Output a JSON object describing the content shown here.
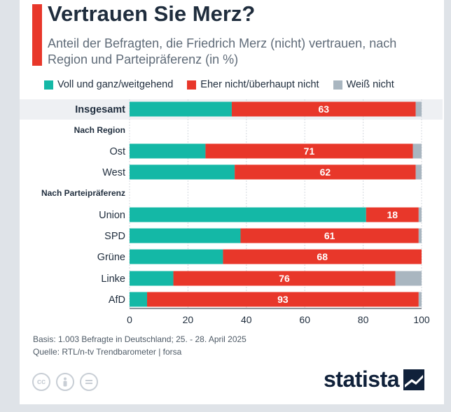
{
  "header": {
    "title": "Vertrauen Sie Merz?",
    "subtitle": "Anteil der Befragten, die Friedrich Merz (nicht) vertrauen, nach Region und Parteipräferenz (in %)"
  },
  "colors": {
    "accent": "#e8372a",
    "trust": "#14b8a6",
    "distrust": "#e8372a",
    "unknown": "#a9b6c0"
  },
  "chart_data": {
    "type": "bar",
    "orientation": "horizontal",
    "stacked": true,
    "categories": [
      "Insgesamt",
      "Ost",
      "West",
      "Union",
      "SPD",
      "Grüne",
      "Linke",
      "AfD"
    ],
    "groups": [
      {
        "label": "Nach Region",
        "before": "Ost"
      },
      {
        "label": "Nach Parteipräferenz",
        "before": "Union"
      }
    ],
    "series": [
      {
        "name": "Voll und ganz/weitgehend",
        "color": "#14b8a6",
        "values": [
          35,
          26,
          36,
          81,
          38,
          32,
          15,
          6
        ]
      },
      {
        "name": "Eher nicht/überhaupt nicht",
        "color": "#e8372a",
        "values": [
          63,
          71,
          62,
          18,
          61,
          68,
          76,
          93
        ]
      },
      {
        "name": "Weiß nicht",
        "color": "#a9b6c0",
        "values": [
          2,
          3,
          2,
          1,
          1,
          0,
          9,
          1
        ]
      }
    ],
    "data_labels_series": "Eher nicht/überhaupt nicht",
    "xlim": [
      0,
      100
    ],
    "xticks": [
      0,
      20,
      40,
      60,
      80,
      100
    ],
    "grid": true
  },
  "footer": {
    "basis": "Basis: 1.003 Befragte in Deutschland; 25. - 28. April 2025",
    "source": "Quelle: RTL/n-tv Trendbarometer | forsa"
  },
  "branding": {
    "logo_text": "statista",
    "license_icons": [
      "cc-icon",
      "by-icon",
      "nd-icon"
    ]
  }
}
